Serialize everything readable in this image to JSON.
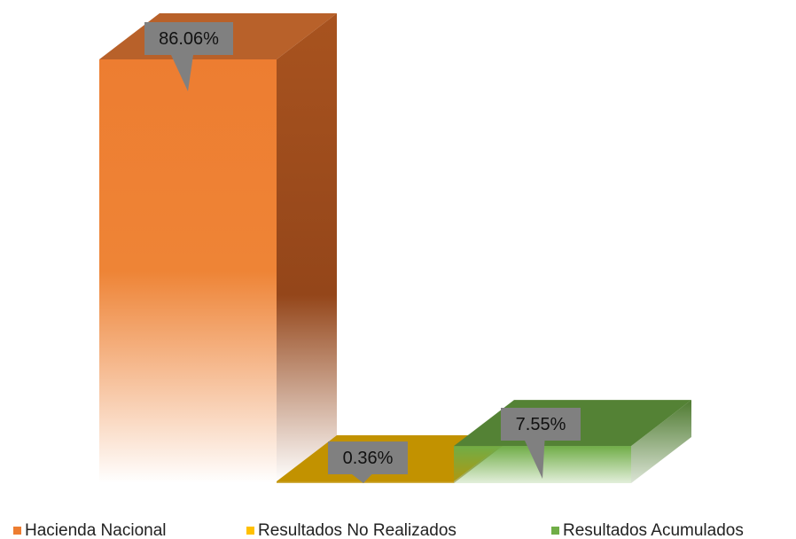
{
  "chart_data": {
    "type": "bar3d",
    "series": [
      {
        "name": "Hacienda Nacional",
        "color": "#ED7D31",
        "values": [
          86.06
        ],
        "value_labels": [
          "86.06%"
        ]
      },
      {
        "name": "Resultados No Realizados",
        "color": "#FFC000",
        "values": [
          0.36
        ],
        "value_labels": [
          "0.36%"
        ]
      },
      {
        "name": "Resultados Acumulados",
        "color": "#70AD47",
        "values": [
          7.55
        ],
        "value_labels": [
          "7.55%"
        ]
      }
    ]
  }
}
